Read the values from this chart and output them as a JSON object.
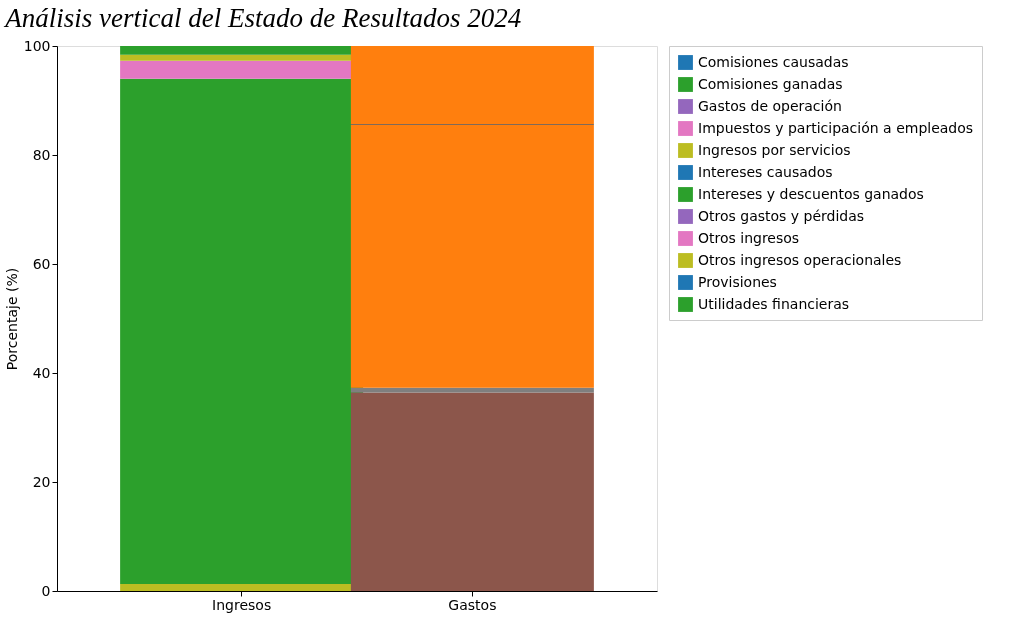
{
  "chart_data": {
    "type": "bar",
    "stacked": true,
    "title": "Análisis vertical del Estado de Resultados 2024",
    "ylabel": "Porcentaje (%)",
    "categories": [
      "Ingresos",
      "Gastos"
    ],
    "series": [
      {
        "name": "Comisiones causadas",
        "color": "#1f77b4",
        "values": [
          0,
          0
        ]
      },
      {
        "name": "Comisiones ganadas",
        "color": "#2ca02c",
        "values": [
          0,
          0
        ]
      },
      {
        "name": "Gastos de operación",
        "color": "#9467bd",
        "values": [
          0,
          0
        ]
      },
      {
        "name": "Impuestos y participación a empleados",
        "color": "#e377c2",
        "values": [
          0,
          0
        ]
      },
      {
        "name": "Ingresos por servicios",
        "color": "#bcbd22",
        "values": [
          1.3,
          0
        ]
      },
      {
        "name": "Intereses causados",
        "color": "#1f77b4",
        "values": [
          0,
          0
        ]
      },
      {
        "name": "Intereses y descuentos ganados",
        "color": "#2ca02c",
        "values": [
          92.7,
          0
        ]
      },
      {
        "name": "Otros gastos y pérdidas",
        "color": "#9467bd",
        "values": [
          0,
          0
        ]
      },
      {
        "name": "Otros ingresos",
        "color": "#e377c2",
        "values": [
          3.3,
          0
        ]
      },
      {
        "name": "Otros ingresos operacionales",
        "color": "#bcbd22",
        "values": [
          1.1,
          0
        ]
      },
      {
        "name": "Provisiones",
        "color": "#1f77b4",
        "values": [
          0,
          0
        ]
      },
      {
        "name": "Utilidades financieras",
        "color": "#2ca02c",
        "values": [
          1.6,
          0
        ]
      },
      {
        "color": "#8c564b",
        "values": [
          0,
          36.4
        ]
      },
      {
        "color": "#7f7f7f",
        "values": [
          0,
          0.9
        ]
      },
      {
        "color": "#ff7f0e",
        "values": [
          0,
          48.2
        ]
      },
      {
        "color": "#7f6a5a",
        "values": [
          0,
          0.2
        ]
      },
      {
        "color": "#ff7f0e",
        "values": [
          0,
          14.3
        ]
      }
    ],
    "ylim": [
      0,
      100
    ],
    "yticks": [
      0,
      20,
      40,
      60,
      80,
      100
    ],
    "grid": false,
    "legend": "top right"
  }
}
